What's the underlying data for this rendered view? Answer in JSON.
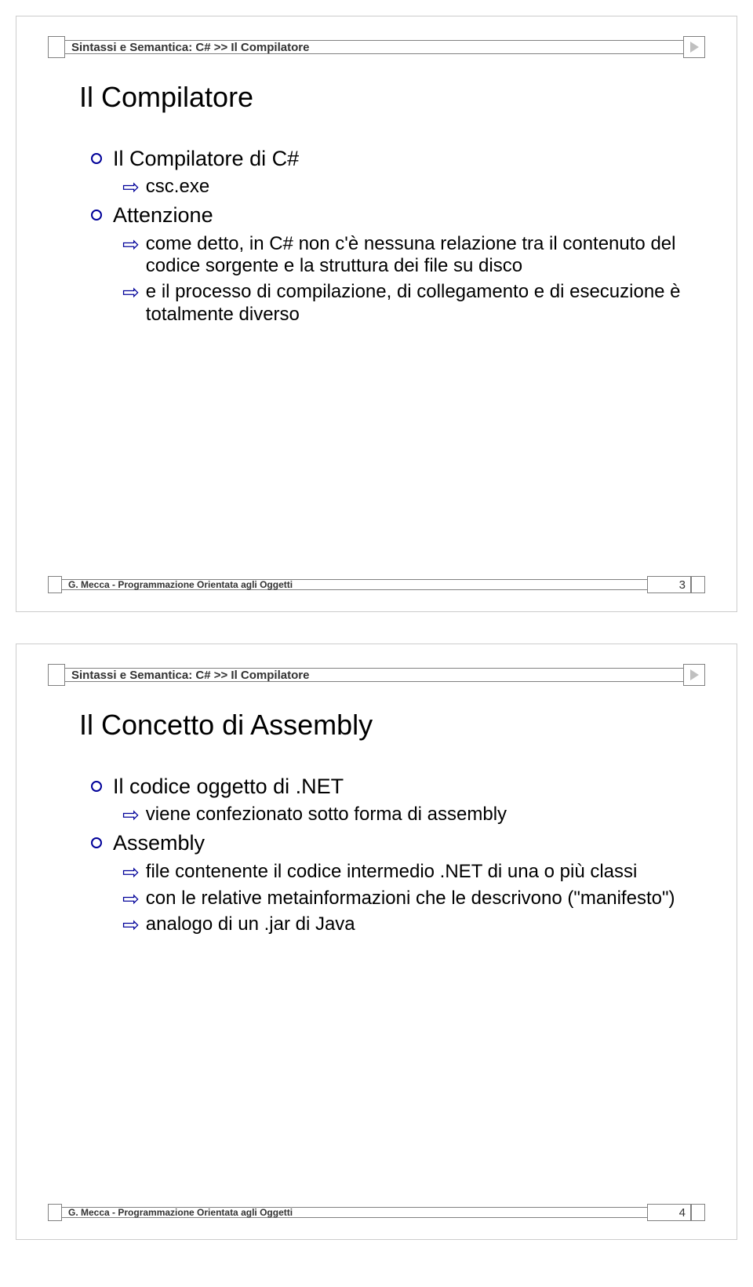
{
  "slides": [
    {
      "header": "Sintassi e Semantica: C# >> Il Compilatore",
      "title": "Il Compilatore",
      "footer": "G. Mecca - Programmazione Orientata agli Oggetti",
      "page": "3",
      "items": [
        {
          "level": 1,
          "text": "Il Compilatore di C#"
        },
        {
          "level": 2,
          "text": "csc.exe"
        },
        {
          "level": 1,
          "text": "Attenzione"
        },
        {
          "level": 2,
          "text": "come detto, in C# non c'è nessuna relazione tra il contenuto del codice sorgente e la struttura dei file su disco"
        },
        {
          "level": 2,
          "text": "e il processo di compilazione, di collegamento e di esecuzione è totalmente diverso"
        }
      ]
    },
    {
      "header": "Sintassi e Semantica: C# >> Il Compilatore",
      "title": "Il Concetto di Assembly",
      "footer": "G. Mecca - Programmazione Orientata agli Oggetti",
      "page": "4",
      "items": [
        {
          "level": 1,
          "text": "Il codice oggetto di .NET"
        },
        {
          "level": 2,
          "text": "viene confezionato sotto forma di assembly"
        },
        {
          "level": 1,
          "text": "Assembly"
        },
        {
          "level": 2,
          "text": "file contenente il codice intermedio .NET di una o più classi"
        },
        {
          "level": 2,
          "text": "con le relative metainformazioni che le descrivono (\"manifesto\")"
        },
        {
          "level": 2,
          "text": "analogo di un .jar di Java"
        }
      ]
    }
  ],
  "colors": {
    "accent": "#000099",
    "border": "#808080",
    "text": "#000000"
  }
}
